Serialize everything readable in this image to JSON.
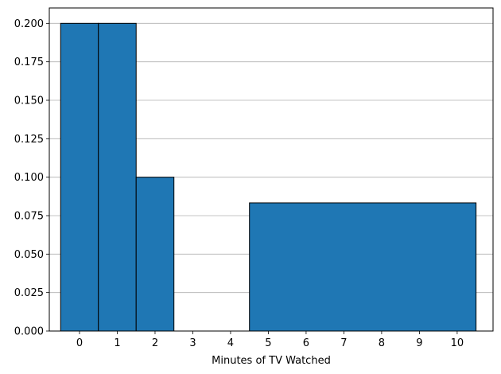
{
  "chart_data": {
    "type": "bar",
    "title": "",
    "xlabel": "Minutes of TV Watched",
    "ylabel": "",
    "xlim": [
      -0.8,
      10.95
    ],
    "ylim": [
      0,
      0.21
    ],
    "grid": {
      "x": false,
      "y": true
    },
    "bar_color": "#1f77b4",
    "edge_color": "#000000",
    "bars": [
      {
        "x_start": -0.5,
        "x_end": 0.5,
        "value": 0.2
      },
      {
        "x_start": 0.5,
        "x_end": 1.5,
        "value": 0.2
      },
      {
        "x_start": 1.5,
        "x_end": 2.5,
        "value": 0.1
      },
      {
        "x_start": 4.5,
        "x_end": 10.5,
        "value": 0.0833
      }
    ],
    "x_ticks": [
      "0",
      "1",
      "2",
      "3",
      "4",
      "5",
      "6",
      "7",
      "8",
      "9",
      "10"
    ],
    "y_ticks": [
      "0.000",
      "0.025",
      "0.050",
      "0.075",
      "0.100",
      "0.125",
      "0.150",
      "0.175",
      "0.200"
    ]
  }
}
